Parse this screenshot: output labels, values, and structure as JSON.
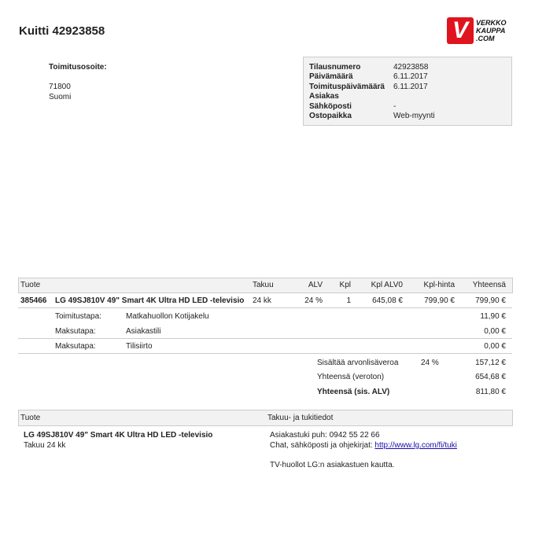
{
  "title": "Kuitti 42923858",
  "logo": {
    "mark": "V",
    "text": [
      "VERKKO",
      "KAUPPA",
      ".COM"
    ],
    "color": "#e0141e"
  },
  "delivery": {
    "label": "Toimitusosoite:",
    "lines": [
      "71800",
      "Suomi"
    ]
  },
  "info": [
    {
      "label": "Tilausnumero",
      "value": "42923858"
    },
    {
      "label": "Päivämäärä",
      "value": "6.11.2017"
    },
    {
      "label": "Toimituspäivämäärä",
      "value": "6.11.2017"
    },
    {
      "label": "Asiakas",
      "value": ""
    },
    {
      "label": "Sähköposti",
      "value": "-"
    },
    {
      "label": "Ostopaikka",
      "value": "Web-myynti"
    }
  ],
  "order_table": {
    "headers": [
      "Tuote",
      "Takuu",
      "ALV",
      "Kpl",
      "Kpl ALV0",
      "Kpl-hinta",
      "Yhteensä"
    ],
    "product": {
      "id": "385466",
      "name": "LG 49SJ810V 49\" Smart 4K Ultra HD LED -televisio",
      "warranty": "24 kk",
      "vat": "24 %",
      "qty": "1",
      "unit_ex_vat": "645,08 €",
      "unit_price": "799,90 €",
      "total": "799,90 €"
    },
    "extras": [
      {
        "label": "Toimitustapa:",
        "value": "Matkahuollon Kotijakelu",
        "amount": "11,90 €"
      },
      {
        "label": "Maksutapa:",
        "value": "Asiakastili",
        "amount": "0,00 €"
      },
      {
        "label": "Maksutapa:",
        "value": "Tilisiirto",
        "amount": "0,00 €"
      }
    ],
    "totals": [
      {
        "label": "Sisältää arvonlisäveroa",
        "rate": "24 %",
        "amount": "157,12 €"
      },
      {
        "label": "Yhteensä (veroton)",
        "rate": "",
        "amount": "654,68 €"
      },
      {
        "label": "Yhteensä (sis. ALV)",
        "rate": "",
        "amount": "811,80 €"
      }
    ]
  },
  "warranty_table": {
    "headers": [
      "Tuote",
      "Takuu- ja tukitiedot"
    ],
    "product_name": "LG 49SJ810V 49\" Smart 4K Ultra HD LED -televisio",
    "product_warranty": "Takuu 24 kk",
    "support_phone": "Asiakastuki puh: 0942 55 22 66",
    "support_chat_label": "Chat, sähköposti ja ohjekirjat: ",
    "support_link": "http://www.lg.com/fi/tuki",
    "service_note": "TV-huollot LG:n asiakastuen kautta."
  }
}
